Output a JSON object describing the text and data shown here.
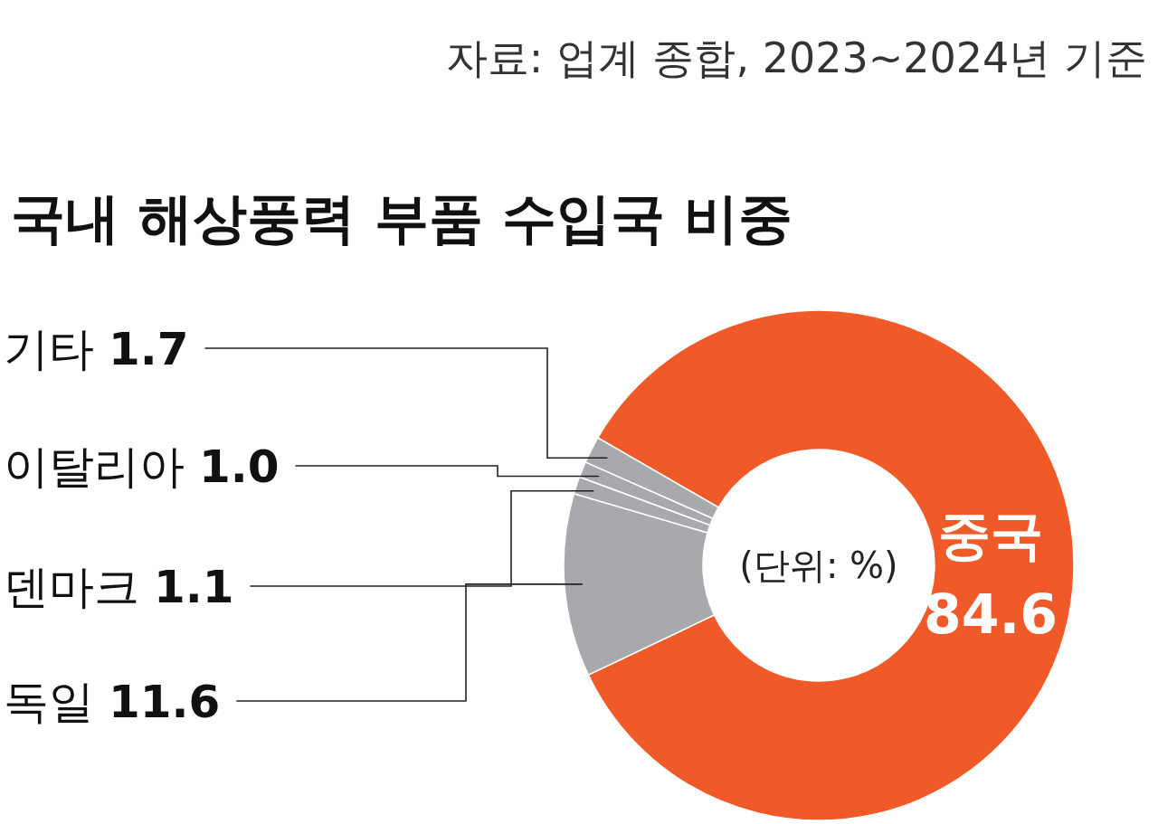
{
  "chart_data": {
    "type": "donut",
    "title": "국내 해상풍력 부품 수입국 비중",
    "annotations": [
      "자료: 업계 종합, 2023~2024년 기준",
      "(단위: %)"
    ],
    "categories": [
      "중국",
      "독일",
      "덴마크",
      "이탈리아",
      "기타"
    ],
    "values": [
      84.6,
      11.6,
      1.1,
      1.0,
      1.7
    ],
    "value_labels": [
      "84.6",
      "11.6",
      "1.1",
      "1.0",
      "1.7"
    ],
    "colors": [
      "#f05a28",
      "#a7a9ac",
      "#a7a9ac",
      "#a7a9ac",
      "#a7a9ac"
    ]
  }
}
